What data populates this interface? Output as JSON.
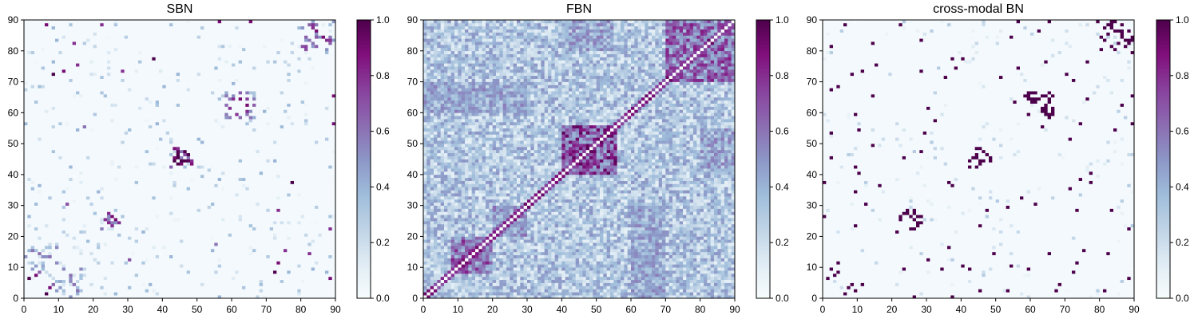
{
  "colormap": {
    "name": "BuPu",
    "stops": [
      "#f7fcfd",
      "#e0ecf4",
      "#bfd3e6",
      "#9ebcda",
      "#8c96c6",
      "#8c6bb1",
      "#88419d",
      "#810f7c",
      "#4d004b"
    ]
  },
  "chart_data": [
    {
      "type": "heatmap",
      "title": "SBN",
      "x_range": [
        0,
        90
      ],
      "y_range": [
        0,
        90
      ],
      "x_ticks": [
        0,
        10,
        20,
        30,
        40,
        50,
        60,
        70,
        80,
        90
      ],
      "y_ticks": [
        0,
        10,
        20,
        30,
        40,
        50,
        60,
        70,
        80,
        90
      ],
      "colorbar_ticks": [
        "0.0",
        "0.2",
        "0.4",
        "0.6",
        "0.8",
        "1.0"
      ],
      "value_range": [
        0,
        1
      ],
      "matrix_size": 90,
      "background_value": 0.02,
      "description": "sparse symmetric structural matrix; strong clusters near (43-49, 42-49), (23-28, 22-28), (60-66, 58-68), (81-89, 82-89)",
      "blocks": [
        [
          42,
          49,
          42,
          49,
          0.55
        ],
        [
          22,
          29,
          22,
          29,
          0.35
        ],
        [
          58,
          67,
          58,
          67,
          0.3
        ],
        [
          80,
          90,
          80,
          90,
          0.3
        ],
        [
          6,
          18,
          0,
          10,
          0.15
        ]
      ],
      "points": [
        [
          44,
          46,
          1
        ],
        [
          45,
          44,
          1
        ],
        [
          46,
          47,
          1
        ],
        [
          43,
          45,
          0.9
        ],
        [
          48,
          44,
          0.8
        ],
        [
          26,
          25,
          0.9
        ],
        [
          24,
          27,
          0.8
        ],
        [
          62,
          64,
          0.9
        ],
        [
          64,
          60,
          0.8
        ],
        [
          84,
          86,
          0.9
        ],
        [
          87,
          83,
          0.8
        ],
        [
          1,
          6,
          1
        ],
        [
          3,
          7,
          0.9
        ],
        [
          8,
          72,
          1
        ],
        [
          11,
          73,
          0.9
        ],
        [
          37,
          77,
          1
        ],
        [
          22,
          88,
          0.8
        ],
        [
          56,
          90,
          0.9
        ],
        [
          89,
          65,
          0.9
        ],
        [
          73,
          28,
          0.8
        ],
        [
          30,
          12,
          0.7
        ],
        [
          17,
          55,
          0.6
        ],
        [
          6,
          88,
          0.9
        ],
        [
          14,
          82,
          0.8
        ],
        [
          75,
          15,
          0.8
        ]
      ]
    },
    {
      "type": "heatmap",
      "title": "FBN",
      "x_range": [
        0,
        90
      ],
      "y_range": [
        0,
        90
      ],
      "x_ticks": [
        0,
        10,
        20,
        30,
        40,
        50,
        60,
        70,
        80,
        90
      ],
      "y_ticks": [
        0,
        10,
        20,
        30,
        40,
        50,
        60,
        70,
        80,
        90
      ],
      "colorbar_ticks": [
        "0.0",
        "0.2",
        "0.4",
        "0.6",
        "0.8",
        "1.0"
      ],
      "value_range": [
        0,
        1
      ],
      "matrix_size": 90,
      "background_value": 0.3,
      "description": "dense symmetric functional matrix; strong diagonal band, blocks at (40-56, 40-56), (70-90, 70-90), (8-20, 8-20)",
      "blocks": [
        [
          40,
          56,
          40,
          56,
          0.75
        ],
        [
          70,
          90,
          70,
          90,
          0.65
        ],
        [
          8,
          20,
          8,
          20,
          0.65
        ],
        [
          20,
          30,
          20,
          30,
          0.5
        ],
        [
          60,
          70,
          0,
          30,
          0.45
        ],
        [
          0,
          30,
          60,
          70,
          0.45
        ],
        [
          40,
          55,
          80,
          90,
          0.45
        ],
        [
          80,
          90,
          40,
          55,
          0.45
        ]
      ],
      "points": [],
      "diagonal_value": 0.85
    },
    {
      "type": "heatmap",
      "title": "cross-modal BN",
      "x_range": [
        0,
        90
      ],
      "y_range": [
        0,
        90
      ],
      "x_ticks": [
        0,
        10,
        20,
        30,
        40,
        50,
        60,
        70,
        80,
        90
      ],
      "y_ticks": [
        0,
        10,
        20,
        30,
        40,
        50,
        60,
        70,
        80,
        90
      ],
      "colorbar_ticks": [
        "0.0",
        "0.2",
        "0.4",
        "0.6",
        "0.8",
        "1.0"
      ],
      "value_range": [
        0,
        1
      ],
      "matrix_size": 90,
      "background_value": 0.02,
      "description": "very sparse binarised connections, mostly dark purple isolated cells",
      "blocks": [
        [
          42,
          49,
          42,
          49,
          0.5
        ],
        [
          22,
          29,
          22,
          29,
          0.3
        ],
        [
          58,
          67,
          58,
          67,
          0.25
        ],
        [
          80,
          90,
          80,
          90,
          0.25
        ]
      ],
      "points": [
        [
          44,
          46,
          1
        ],
        [
          45,
          44,
          1
        ],
        [
          46,
          47,
          1
        ],
        [
          43,
          45,
          1
        ],
        [
          48,
          44,
          1
        ],
        [
          26,
          25,
          1
        ],
        [
          24,
          27,
          1
        ],
        [
          62,
          64,
          1
        ],
        [
          64,
          60,
          1
        ],
        [
          84,
          86,
          1
        ],
        [
          87,
          83,
          1
        ],
        [
          1,
          6,
          1
        ],
        [
          3,
          7,
          1
        ],
        [
          8,
          72,
          1
        ],
        [
          11,
          73,
          1
        ],
        [
          37,
          77,
          1
        ],
        [
          22,
          88,
          1
        ],
        [
          56,
          90,
          1
        ],
        [
          89,
          65,
          1
        ],
        [
          73,
          28,
          1
        ],
        [
          30,
          12,
          1
        ],
        [
          6,
          88,
          1
        ],
        [
          14,
          82,
          1
        ],
        [
          75,
          15,
          1
        ],
        [
          9,
          2,
          1
        ],
        [
          11,
          4,
          1
        ]
      ],
      "binary": true
    }
  ]
}
